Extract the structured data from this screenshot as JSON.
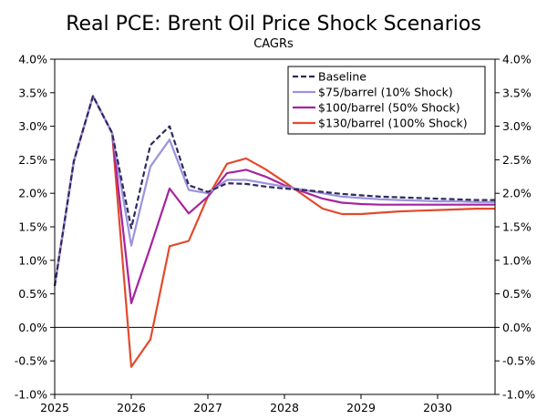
{
  "chart_data": {
    "type": "line",
    "title": "Real PCE: Brent Oil Price Shock Scenarios",
    "subtitle": "CAGRs",
    "xlabel": "",
    "ylabel": "",
    "x": [
      2025.0,
      2025.25,
      2025.5,
      2025.75,
      2026.0,
      2026.25,
      2026.5,
      2026.75,
      2027.0,
      2027.25,
      2027.5,
      2027.75,
      2028.0,
      2028.25,
      2028.5,
      2028.75,
      2029.0,
      2029.25,
      2029.5,
      2029.75,
      2030.0,
      2030.25,
      2030.5,
      2030.75
    ],
    "x_ticks": [
      2025,
      2026,
      2027,
      2028,
      2029,
      2030
    ],
    "x_tick_labels": [
      "2025",
      "2026",
      "2027",
      "2028",
      "2029",
      "2030"
    ],
    "xlim": [
      2025.0,
      2030.75
    ],
    "ylim": [
      -1.0,
      4.0
    ],
    "y_ticks": [
      -1.0,
      -0.5,
      0.0,
      0.5,
      1.0,
      1.5,
      2.0,
      2.5,
      3.0,
      3.5,
      4.0
    ],
    "y_tick_labels": [
      "-1.0%",
      "-0.5%",
      "0.0%",
      "0.5%",
      "1.0%",
      "1.5%",
      "2.0%",
      "2.5%",
      "3.0%",
      "3.5%",
      "4.0%"
    ],
    "grid": false,
    "legend_position": "top-right",
    "series": [
      {
        "name": "Baseline",
        "color": "#2e2a5e",
        "style": "dashed",
        "values": [
          0.62,
          2.48,
          3.45,
          2.9,
          1.48,
          2.72,
          3.0,
          2.12,
          2.02,
          2.15,
          2.14,
          2.1,
          2.07,
          2.05,
          2.02,
          1.99,
          1.97,
          1.95,
          1.94,
          1.93,
          1.92,
          1.91,
          1.9,
          1.9
        ]
      },
      {
        "name": "$75/barrel (10% Shock)",
        "color": "#9b93dd",
        "style": "solid",
        "values": [
          0.62,
          2.48,
          3.45,
          2.9,
          1.22,
          2.4,
          2.8,
          2.05,
          2.0,
          2.2,
          2.2,
          2.15,
          2.1,
          2.05,
          2.0,
          1.95,
          1.93,
          1.91,
          1.9,
          1.89,
          1.88,
          1.88,
          1.87,
          1.87
        ]
      },
      {
        "name": "$100/barrel (50% Shock)",
        "color": "#a6239e",
        "style": "solid",
        "values": [
          0.62,
          2.48,
          3.45,
          2.9,
          0.36,
          1.2,
          2.07,
          1.7,
          1.95,
          2.3,
          2.35,
          2.25,
          2.12,
          2.02,
          1.92,
          1.86,
          1.84,
          1.83,
          1.83,
          1.83,
          1.83,
          1.83,
          1.83,
          1.83
        ]
      },
      {
        "name": "$130/barrel (100% Shock)",
        "color": "#e24a2c",
        "style": "solid",
        "values": [
          0.62,
          2.48,
          3.45,
          2.9,
          -0.59,
          -0.18,
          1.21,
          1.29,
          1.95,
          2.44,
          2.52,
          2.36,
          2.17,
          1.97,
          1.77,
          1.69,
          1.69,
          1.71,
          1.73,
          1.74,
          1.75,
          1.76,
          1.77,
          1.77
        ]
      }
    ]
  }
}
